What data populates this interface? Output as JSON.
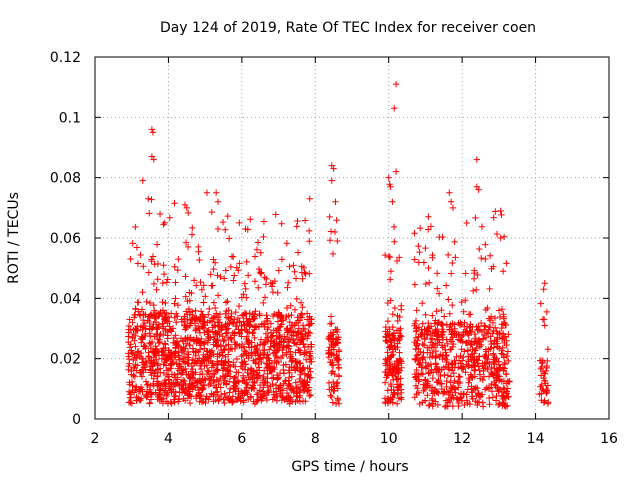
{
  "chart_data": {
    "type": "scatter",
    "title": "Day 124 of 2019, Rate Of TEC Index for receiver coen",
    "xlabel": "GPS time / hours",
    "ylabel": "ROTI / TECUs",
    "xlim": [
      2,
      16
    ],
    "ylim": [
      0,
      0.12
    ],
    "x_ticks": [
      2,
      4,
      6,
      8,
      10,
      12,
      14,
      16
    ],
    "y_ticks": [
      0,
      0.02,
      0.04,
      0.06,
      0.08,
      0.1,
      0.12
    ],
    "x_tick_labels": [
      "2",
      "4",
      "6",
      "8",
      "10",
      "12",
      "14",
      "16"
    ],
    "y_tick_labels": [
      "0",
      "0.02",
      "0.04",
      "0.06",
      "0.08",
      "0.1",
      "0.12"
    ],
    "grid": true,
    "marker": "+",
    "marker_color": "#ff0000",
    "clusters": [
      {
        "x_range": [
          2.9,
          7.9
        ],
        "y_base": [
          0.005,
          0.035
        ],
        "y_spread": 0.04,
        "count": 1600
      },
      {
        "x_range": [
          8.35,
          8.65
        ],
        "y_base": [
          0.005,
          0.03
        ],
        "y_spread": 0.055,
        "count": 90
      },
      {
        "x_range": [
          9.9,
          10.35
        ],
        "y_base": [
          0.005,
          0.03
        ],
        "y_spread": 0.05,
        "count": 160
      },
      {
        "x_range": [
          10.7,
          13.3
        ],
        "y_base": [
          0.004,
          0.032
        ],
        "y_spread": 0.045,
        "count": 700
      },
      {
        "x_range": [
          14.1,
          14.35
        ],
        "y_base": [
          0.005,
          0.02
        ],
        "y_spread": 0.03,
        "count": 40
      }
    ],
    "points": [
      {
        "x": 3.55,
        "y": 0.096
      },
      {
        "x": 3.58,
        "y": 0.095
      },
      {
        "x": 3.55,
        "y": 0.087
      },
      {
        "x": 3.6,
        "y": 0.086
      },
      {
        "x": 3.3,
        "y": 0.079
      },
      {
        "x": 3.45,
        "y": 0.073
      },
      {
        "x": 3.9,
        "y": 0.065
      },
      {
        "x": 4.45,
        "y": 0.071
      },
      {
        "x": 4.5,
        "y": 0.07
      },
      {
        "x": 5.05,
        "y": 0.075
      },
      {
        "x": 5.3,
        "y": 0.075
      },
      {
        "x": 5.35,
        "y": 0.072
      },
      {
        "x": 6.1,
        "y": 0.063
      },
      {
        "x": 7.85,
        "y": 0.073
      },
      {
        "x": 8.45,
        "y": 0.084
      },
      {
        "x": 8.5,
        "y": 0.083
      },
      {
        "x": 8.45,
        "y": 0.079
      },
      {
        "x": 8.55,
        "y": 0.072
      },
      {
        "x": 8.6,
        "y": 0.059
      },
      {
        "x": 10.0,
        "y": 0.08
      },
      {
        "x": 10.05,
        "y": 0.077
      },
      {
        "x": 10.1,
        "y": 0.072
      },
      {
        "x": 10.2,
        "y": 0.111
      },
      {
        "x": 10.15,
        "y": 0.103
      },
      {
        "x": 10.2,
        "y": 0.082
      },
      {
        "x": 11.65,
        "y": 0.075
      },
      {
        "x": 11.7,
        "y": 0.072
      },
      {
        "x": 11.75,
        "y": 0.07
      },
      {
        "x": 12.4,
        "y": 0.086
      },
      {
        "x": 12.4,
        "y": 0.077
      },
      {
        "x": 12.45,
        "y": 0.076
      },
      {
        "x": 13.05,
        "y": 0.069
      },
      {
        "x": 13.05,
        "y": 0.06
      },
      {
        "x": 14.25,
        "y": 0.045
      },
      {
        "x": 14.22,
        "y": 0.043
      },
      {
        "x": 14.2,
        "y": 0.033
      },
      {
        "x": 14.25,
        "y": 0.031
      }
    ]
  }
}
